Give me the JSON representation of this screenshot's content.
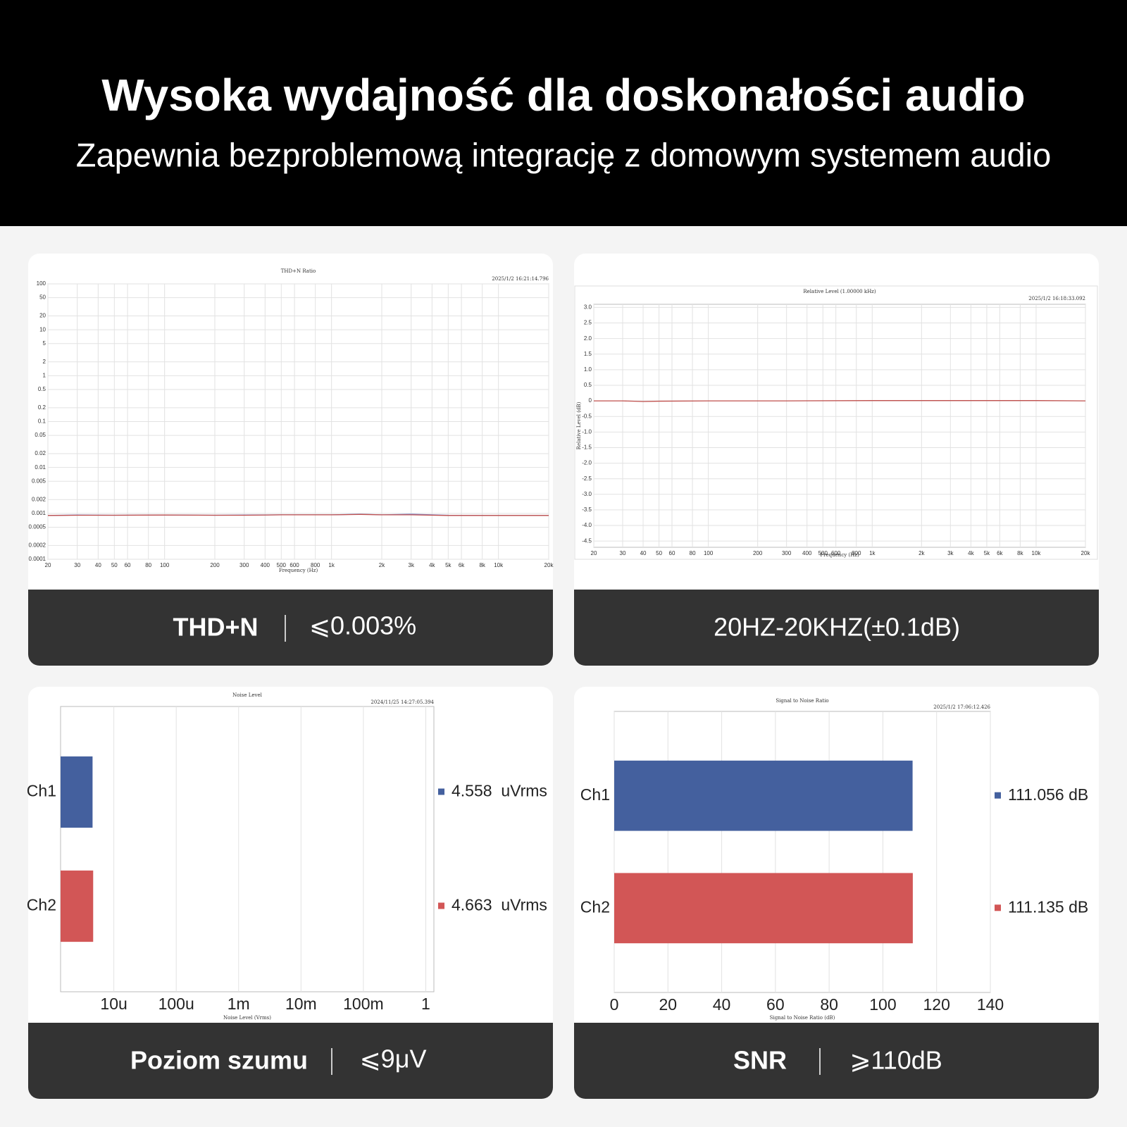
{
  "header": {
    "title": "Wysoka wydajność dla doskonałości audio",
    "subtitle": "Zapewnia bezproblemową integrację z domowym systemem audio"
  },
  "chart_data": [
    {
      "type": "line",
      "title": "THD+N Ratio",
      "timestamp": "2025/1/2 16:21:14.796",
      "x_label": "Frequency (Hz)",
      "xscale": "log",
      "yscale": "log",
      "grid": true,
      "x": [
        20,
        30,
        50,
        100,
        200,
        300,
        500,
        1000,
        1500,
        2000,
        3000,
        5000,
        10000,
        20000
      ],
      "series": [
        {
          "color": "#7a86d0",
          "values": [
            0.0009,
            0.00092,
            0.00091,
            0.00092,
            0.00091,
            0.00092,
            0.00093,
            0.00093,
            0.00096,
            0.00093,
            0.00096,
            0.00091,
            0.0009,
            0.0009
          ]
        },
        {
          "color": "#c0504d",
          "values": [
            0.0009,
            0.00091,
            0.00091,
            0.00092,
            0.00091,
            0.00091,
            0.00093,
            0.00093,
            0.00095,
            0.00093,
            0.00093,
            0.0009,
            0.0009,
            0.0009
          ]
        }
      ],
      "xlim": [
        20,
        20000
      ],
      "ylim": [
        0.0001,
        100
      ],
      "xticks": [
        20,
        30,
        40,
        50,
        60,
        80,
        100,
        200,
        300,
        400,
        500,
        600,
        800,
        {
          "value": 1000,
          "label": "1k"
        },
        {
          "value": 2000,
          "label": "2k"
        },
        {
          "value": 3000,
          "label": "3k"
        },
        {
          "value": 4000,
          "label": "4k"
        },
        {
          "value": 5000,
          "label": "5k"
        },
        {
          "value": 6000,
          "label": "6k"
        },
        {
          "value": 8000,
          "label": "8k"
        },
        {
          "value": 10000,
          "label": "10k"
        },
        {
          "value": 20000,
          "label": "20k"
        }
      ],
      "yticks": [
        100,
        50,
        20,
        10,
        5,
        2,
        1,
        0.5,
        0.2,
        0.1,
        0.05,
        0.02,
        0.01,
        0.005,
        0.002,
        0.001,
        0.0005,
        0.0002,
        0.0001
      ]
    },
    {
      "type": "line",
      "title": "Relative Level (1.00000 kHz)",
      "timestamp": "2025/1/2 16:18:33.092",
      "x_label": "Frequency (Hz)",
      "y_label": "Relative Level (dB)",
      "xscale": "log",
      "yscale": "linear",
      "grid": true,
      "x": [
        20,
        30,
        40,
        50,
        100,
        300,
        1000,
        3000,
        10000,
        20000
      ],
      "series": [
        {
          "color": "#c0504d",
          "values": [
            0,
            0,
            -0.02,
            -0.01,
            0,
            0,
            0.01,
            0.01,
            0.01,
            0
          ]
        }
      ],
      "xlim": [
        20,
        20000
      ],
      "ylim": [
        -4.7,
        3.1
      ],
      "xticks": [
        20,
        30,
        40,
        50,
        60,
        80,
        100,
        200,
        300,
        400,
        500,
        600,
        800,
        {
          "value": 1000,
          "label": "1k"
        },
        {
          "value": 2000,
          "label": "2k"
        },
        {
          "value": 3000,
          "label": "3k"
        },
        {
          "value": 4000,
          "label": "4k"
        },
        {
          "value": 5000,
          "label": "5k"
        },
        {
          "value": 6000,
          "label": "6k"
        },
        {
          "value": 8000,
          "label": "8k"
        },
        {
          "value": 10000,
          "label": "10k"
        },
        {
          "value": 20000,
          "label": "20k"
        }
      ],
      "yticks": [
        {
          "value": 3,
          "label": "3.0"
        },
        2.5,
        {
          "value": 2,
          "label": "2.0"
        },
        1.5,
        {
          "value": 1,
          "label": "1.0"
        },
        0.5,
        0,
        -0.5,
        {
          "value": -1,
          "label": "-1.0"
        },
        -1.5,
        {
          "value": -2,
          "label": "-2.0"
        },
        -2.5,
        {
          "value": -3,
          "label": "-3.0"
        },
        -3.5,
        {
          "value": -4,
          "label": "-4.0"
        },
        -4.5
      ]
    },
    {
      "type": "bar",
      "orientation": "horizontal",
      "title": "Noise Level",
      "timestamp": "2024/11/25 14:27:05.394",
      "x_label": "Noise Level (Vrms)",
      "xscale": "log",
      "grid": true,
      "categories": [
        "Ch1",
        "Ch2"
      ],
      "values": [
        4.558e-06,
        4.663e-06
      ],
      "value_labels": [
        "4.558  uVrms",
        "4.663  uVrms"
      ],
      "colors": [
        "#44609e",
        "#d25656"
      ],
      "xlim": [
        1.4e-06,
        1.35
      ],
      "xticks": [
        {
          "value": 1e-05,
          "label": "10u"
        },
        {
          "value": 0.0001,
          "label": "100u"
        },
        {
          "value": 0.001,
          "label": "1m"
        },
        {
          "value": 0.01,
          "label": "10m"
        },
        {
          "value": 0.1,
          "label": "100m"
        },
        1
      ]
    },
    {
      "type": "bar",
      "orientation": "horizontal",
      "title": "Signal to Noise Ratio",
      "timestamp": "2025/1/2 17:06:12.426",
      "x_label": "Signal to Noise Ratio (dB)",
      "xscale": "linear",
      "grid": true,
      "categories": [
        "Ch1",
        "Ch2"
      ],
      "values": [
        111.056,
        111.135
      ],
      "value_labels": [
        "111.056 dB",
        "111.135 dB"
      ],
      "colors": [
        "#44609e",
        "#d25656"
      ],
      "xlim": [
        0,
        140
      ],
      "xticks": [
        0,
        20,
        40,
        60,
        80,
        100,
        120,
        140
      ]
    }
  ],
  "cards": [
    {
      "label": "THD+N",
      "value": "⩽0.003%"
    },
    {
      "value": "20HZ-20KHZ(±0.1dB)"
    },
    {
      "label": "Poziom szumu",
      "value": "⩽9μV"
    },
    {
      "label": "SNR",
      "value": "⩾110dB"
    }
  ]
}
